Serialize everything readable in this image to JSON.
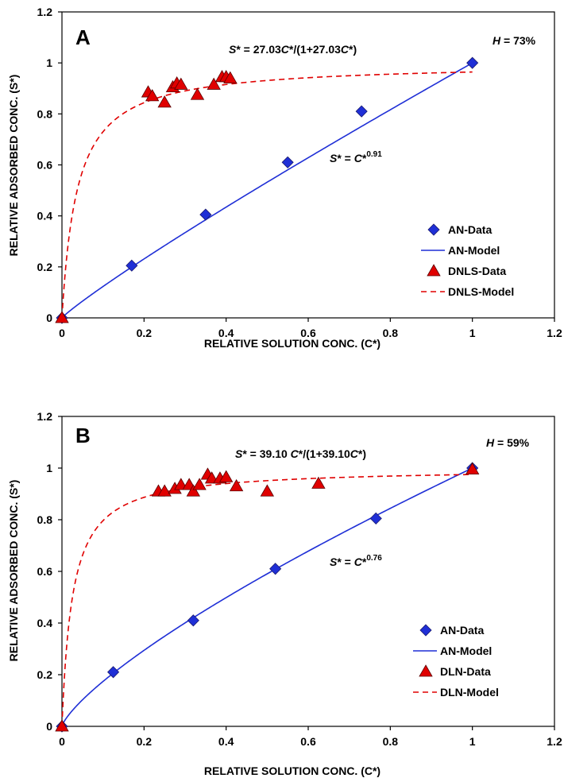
{
  "chart_data": [
    {
      "panel": "A",
      "type": "scatter",
      "xlabel": "RELATIVE SOLUTION CONC. (C*)",
      "ylabel": "RELATIVE ADSORBED  CONC. (S*)",
      "xlim": [
        0,
        1.2
      ],
      "ylim": [
        0,
        1.2
      ],
      "xticks": [
        "0",
        "0.2",
        "0.4",
        "0.6",
        "0.8",
        "1",
        "1.2"
      ],
      "yticks": [
        "0",
        "0.2",
        "0.4",
        "0.6",
        "0.8",
        "1",
        "1.2"
      ],
      "grid": false,
      "legend_position": "bottom-right",
      "annotations": {
        "langmuir": {
          "pre": "S",
          "p1": "* = 27.03",
          "mid": "C",
          "p2": "*/(1+27.03",
          "c2": "C",
          "end": "*)"
        },
        "freundlich": {
          "pre": "S",
          "p1": "* = ",
          "mid": "C",
          "p2": "*",
          "sup": "0.91"
        },
        "humidity": {
          "pre": "H",
          "rest": " = 73%"
        }
      },
      "series": [
        {
          "name": "AN-Data",
          "kind": "points",
          "marker": "diamond",
          "color": "#1f2fd6",
          "x": [
            0,
            0.17,
            0.35,
            0.55,
            0.73,
            1.0
          ],
          "y": [
            0,
            0.205,
            0.405,
            0.61,
            0.81,
            1.0
          ]
        },
        {
          "name": "AN-Model",
          "kind": "line",
          "style": "solid",
          "color": "#1f2fd6",
          "model": "power",
          "exponent": 0.91
        },
        {
          "name": "DNLS-Data",
          "kind": "points",
          "marker": "triangle",
          "color": "#e00000",
          "x": [
            0,
            0.21,
            0.22,
            0.25,
            0.27,
            0.28,
            0.29,
            0.33,
            0.37,
            0.39,
            0.4,
            0.41
          ],
          "y": [
            0,
            0.885,
            0.87,
            0.845,
            0.905,
            0.92,
            0.915,
            0.875,
            0.915,
            0.945,
            0.945,
            0.94
          ]
        },
        {
          "name": "DNLS-Model",
          "kind": "line",
          "style": "dashed",
          "color": "#e00000",
          "model": "langmuir",
          "k": 27.03
        }
      ]
    },
    {
      "panel": "B",
      "type": "scatter",
      "xlabel": "RELATIVE SOLUTION CONC. (C*)",
      "ylabel": "RELATIVE ADSORBED CONC. (S*)",
      "xlim": [
        0,
        1.2
      ],
      "ylim": [
        0,
        1.2
      ],
      "xticks": [
        "0",
        "0.2",
        "0.4",
        "0.6",
        "0.8",
        "1",
        "1.2"
      ],
      "yticks": [
        "0",
        "0.2",
        "0.4",
        "0.6",
        "0.8",
        "1",
        "1.2"
      ],
      "grid": false,
      "legend_position": "bottom-right",
      "annotations": {
        "langmuir": {
          "pre": "S",
          "p1": "* = 39.10 ",
          "mid": "C",
          "p2": "*/(1+39.10",
          "c2": "C",
          "end": "*)"
        },
        "freundlich": {
          "pre": "S",
          "p1": "* = ",
          "mid": "C",
          "p2": "*",
          "sup": "0.76"
        },
        "humidity": {
          "pre": "H",
          "rest": " = 59%"
        }
      },
      "series": [
        {
          "name": "AN-Data",
          "kind": "points",
          "marker": "diamond",
          "color": "#1f2fd6",
          "x": [
            0,
            0.125,
            0.32,
            0.52,
            0.765,
            1.0
          ],
          "y": [
            0,
            0.21,
            0.41,
            0.61,
            0.805,
            1.0
          ]
        },
        {
          "name": "AN-Model",
          "kind": "line",
          "style": "solid",
          "color": "#1f2fd6",
          "model": "power",
          "exponent": 0.76
        },
        {
          "name": "DLN-Data",
          "kind": "points",
          "marker": "triangle",
          "color": "#e00000",
          "x": [
            0,
            0.235,
            0.25,
            0.275,
            0.29,
            0.31,
            0.32,
            0.335,
            0.355,
            0.365,
            0.385,
            0.4,
            0.425,
            0.5,
            0.625,
            1.0
          ],
          "y": [
            0,
            0.91,
            0.91,
            0.92,
            0.935,
            0.935,
            0.91,
            0.935,
            0.975,
            0.96,
            0.96,
            0.965,
            0.93,
            0.91,
            0.94,
            0.995
          ]
        },
        {
          "name": "DLN-Model",
          "kind": "line",
          "style": "dashed",
          "color": "#e00000",
          "model": "langmuir",
          "k": 39.1
        }
      ]
    }
  ]
}
